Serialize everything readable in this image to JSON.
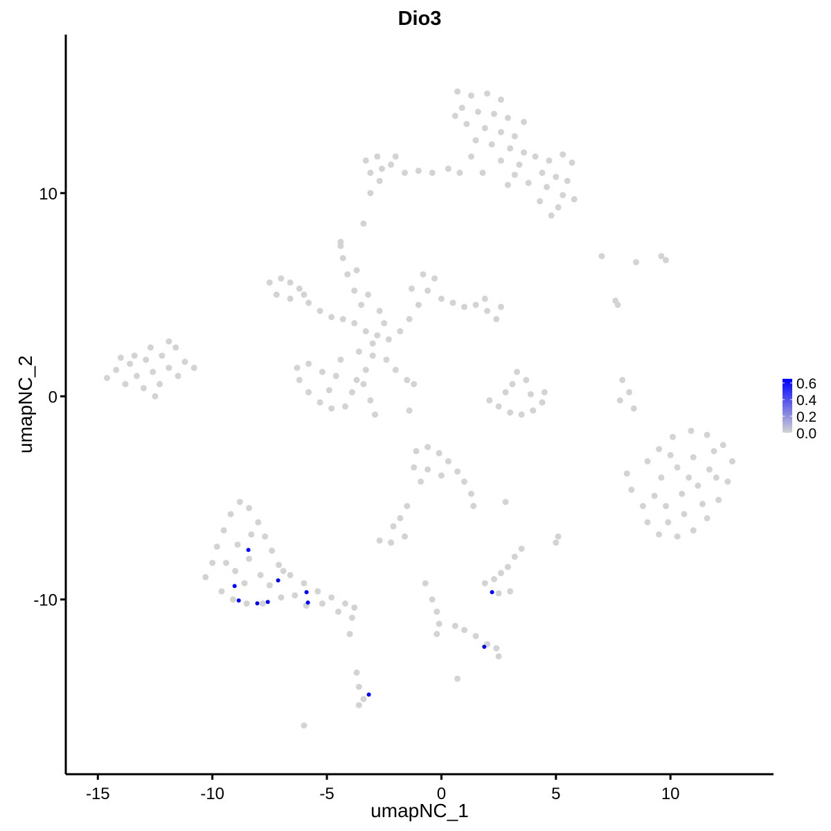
{
  "chart_data": {
    "type": "scatter",
    "title": "Dio3",
    "xlabel": "umapNC_1",
    "ylabel": "umapNC_2",
    "xlim": [
      -16.4,
      14.5
    ],
    "ylim": [
      -18.6,
      17.8
    ],
    "xticks": [
      -15,
      -10,
      -5,
      0,
      5,
      10
    ],
    "yticks": [
      -10,
      0,
      10
    ],
    "grid": false,
    "legend": {
      "placement": "right",
      "type": "colorbar",
      "ticks": [
        "0.0",
        "0.2",
        "0.4",
        "0.6"
      ],
      "range": [
        0,
        0.65
      ],
      "low_color": "#d3d3d3",
      "high_color": "#0000ff"
    },
    "series": [
      {
        "value": 0,
        "color": "#d3d3d3",
        "points": [
          [
            0.7,
            15.0
          ],
          [
            1.3,
            14.8
          ],
          [
            2.0,
            14.9
          ],
          [
            2.6,
            14.6
          ],
          [
            0.9,
            14.2
          ],
          [
            1.6,
            14.0
          ],
          [
            2.3,
            13.9
          ],
          [
            2.9,
            13.7
          ],
          [
            1.1,
            13.4
          ],
          [
            1.9,
            13.2
          ],
          [
            2.6,
            13.0
          ],
          [
            3.2,
            12.8
          ],
          [
            1.5,
            12.6
          ],
          [
            2.2,
            12.4
          ],
          [
            3.0,
            12.2
          ],
          [
            3.6,
            12.0
          ],
          [
            1.3,
            11.8
          ],
          [
            2.6,
            11.6
          ],
          [
            3.4,
            11.4
          ],
          [
            4.1,
            11.8
          ],
          [
            4.7,
            11.6
          ],
          [
            5.3,
            11.9
          ],
          [
            5.7,
            11.5
          ],
          [
            4.4,
            11.0
          ],
          [
            5.0,
            10.8
          ],
          [
            5.5,
            10.6
          ],
          [
            3.8,
            10.5
          ],
          [
            4.6,
            10.3
          ],
          [
            5.3,
            9.9
          ],
          [
            5.8,
            9.7
          ],
          [
            5.1,
            9.3
          ],
          [
            4.8,
            8.9
          ],
          [
            4.3,
            9.6
          ],
          [
            2.9,
            10.4
          ],
          [
            3.2,
            10.9
          ],
          [
            0.8,
            11.0
          ],
          [
            0.3,
            11.2
          ],
          [
            -0.4,
            11.0
          ],
          [
            -1.0,
            11.1
          ],
          [
            -1.6,
            11.0
          ],
          [
            -2.2,
            11.4
          ],
          [
            -2.8,
            11.8
          ],
          [
            -3.3,
            11.6
          ],
          [
            -2.6,
            11.2
          ],
          [
            -3.1,
            11.0
          ],
          [
            -2.7,
            10.6
          ],
          [
            -2.0,
            11.8
          ],
          [
            -3.1,
            10.0
          ],
          [
            -3.4,
            8.5
          ],
          [
            3.6,
            13.5
          ],
          [
            0.6,
            13.8
          ],
          [
            1.8,
            11.0
          ],
          [
            -14.6,
            0.9
          ],
          [
            -14.2,
            1.3
          ],
          [
            -13.8,
            0.6
          ],
          [
            -13.6,
            1.6
          ],
          [
            -13.3,
            1.0
          ],
          [
            -13.0,
            0.4
          ],
          [
            -12.9,
            1.8
          ],
          [
            -12.6,
            1.2
          ],
          [
            -12.3,
            0.6
          ],
          [
            -12.2,
            2.0
          ],
          [
            -11.9,
            1.4
          ],
          [
            -11.6,
            2.4
          ],
          [
            -11.5,
            1.0
          ],
          [
            -11.2,
            1.7
          ],
          [
            -11.9,
            2.7
          ],
          [
            -10.8,
            1.4
          ],
          [
            -13.4,
            2.0
          ],
          [
            -14.0,
            1.9
          ],
          [
            -12.5,
            0.0
          ],
          [
            -12.7,
            2.4
          ],
          [
            -7.5,
            5.6
          ],
          [
            -7.0,
            5.8
          ],
          [
            -6.6,
            5.6
          ],
          [
            -6.2,
            5.3
          ],
          [
            -7.2,
            5.0
          ],
          [
            -6.6,
            4.8
          ],
          [
            -5.8,
            4.6
          ],
          [
            -5.3,
            4.2
          ],
          [
            -4.8,
            3.9
          ],
          [
            -4.3,
            3.8
          ],
          [
            -3.8,
            3.6
          ],
          [
            -3.3,
            3.2
          ],
          [
            -2.8,
            3.0
          ],
          [
            -2.3,
            2.8
          ],
          [
            -1.8,
            3.2
          ],
          [
            -1.4,
            3.8
          ],
          [
            -1.0,
            4.5
          ],
          [
            -0.6,
            5.2
          ],
          [
            -0.3,
            5.8
          ],
          [
            -0.8,
            6.0
          ],
          [
            -1.3,
            5.3
          ],
          [
            0.0,
            4.8
          ],
          [
            0.5,
            4.6
          ],
          [
            1.0,
            4.4
          ],
          [
            1.5,
            4.5
          ],
          [
            2.0,
            4.2
          ],
          [
            2.4,
            3.8
          ],
          [
            2.6,
            4.4
          ],
          [
            1.9,
            4.8
          ],
          [
            -3.5,
            4.5
          ],
          [
            -3.8,
            5.2
          ],
          [
            -4.1,
            6.0
          ],
          [
            -4.3,
            6.8
          ],
          [
            -4.4,
            7.4
          ],
          [
            -3.2,
            5.0
          ],
          [
            -2.7,
            4.2
          ],
          [
            -2.5,
            3.6
          ],
          [
            -3.0,
            2.0
          ],
          [
            -3.3,
            1.3
          ],
          [
            -3.7,
            0.8
          ],
          [
            -3.9,
            0.2
          ],
          [
            -4.2,
            -0.5
          ],
          [
            -4.8,
            -0.6
          ],
          [
            -5.3,
            -0.3
          ],
          [
            -5.8,
            0.2
          ],
          [
            -6.2,
            0.8
          ],
          [
            -6.3,
            1.4
          ],
          [
            -5.8,
            1.6
          ],
          [
            -5.2,
            1.2
          ],
          [
            -4.6,
            1.0
          ],
          [
            -4.4,
            1.8
          ],
          [
            -3.6,
            2.2
          ],
          [
            -4.9,
            0.3
          ],
          [
            -3.1,
            -0.2
          ],
          [
            -3.4,
            0.6
          ],
          [
            -2.4,
            1.8
          ],
          [
            -2.0,
            1.3
          ],
          [
            -1.5,
            0.8
          ],
          [
            -1.2,
            0.6
          ],
          [
            -3.0,
            2.6
          ],
          [
            -6.0,
            5.0
          ],
          [
            2.1,
            -0.2
          ],
          [
            2.5,
            -0.5
          ],
          [
            3.0,
            -0.8
          ],
          [
            3.5,
            -0.9
          ],
          [
            4.0,
            -0.7
          ],
          [
            4.4,
            -0.3
          ],
          [
            4.5,
            0.2
          ],
          [
            3.1,
            0.6
          ],
          [
            3.3,
            1.2
          ],
          [
            3.7,
            0.8
          ],
          [
            2.8,
            0.2
          ],
          [
            3.9,
            0.1
          ],
          [
            8.1,
            -3.8
          ],
          [
            8.3,
            -4.6
          ],
          [
            8.8,
            -5.4
          ],
          [
            9.0,
            -6.2
          ],
          [
            9.5,
            -6.8
          ],
          [
            10.3,
            -6.9
          ],
          [
            11.0,
            -6.6
          ],
          [
            11.6,
            -6.0
          ],
          [
            12.1,
            -5.1
          ],
          [
            12.5,
            -4.2
          ],
          [
            12.7,
            -3.2
          ],
          [
            12.3,
            -2.4
          ],
          [
            11.6,
            -1.9
          ],
          [
            10.9,
            -1.7
          ],
          [
            10.1,
            -2.0
          ],
          [
            9.5,
            -2.6
          ],
          [
            9.0,
            -3.2
          ],
          [
            9.6,
            -4.0
          ],
          [
            10.3,
            -3.5
          ],
          [
            11.0,
            -3.0
          ],
          [
            11.7,
            -3.6
          ],
          [
            11.2,
            -4.4
          ],
          [
            10.5,
            -4.8
          ],
          [
            9.8,
            -5.4
          ],
          [
            10.6,
            -5.8
          ],
          [
            11.4,
            -5.3
          ],
          [
            12.0,
            -4.0
          ],
          [
            9.3,
            -4.9
          ],
          [
            10.0,
            -2.9
          ],
          [
            10.8,
            -4.0
          ],
          [
            11.9,
            -2.7
          ],
          [
            9.9,
            -6.2
          ],
          [
            -10.3,
            -8.9
          ],
          [
            -10.0,
            -8.2
          ],
          [
            -9.8,
            -7.4
          ],
          [
            -9.5,
            -6.6
          ],
          [
            -9.2,
            -5.8
          ],
          [
            -8.8,
            -5.2
          ],
          [
            -8.4,
            -5.5
          ],
          [
            -8.0,
            -6.2
          ],
          [
            -7.7,
            -6.9
          ],
          [
            -7.4,
            -7.6
          ],
          [
            -7.1,
            -8.3
          ],
          [
            -6.6,
            -8.8
          ],
          [
            -6.0,
            -9.2
          ],
          [
            -5.4,
            -9.6
          ],
          [
            -4.8,
            -9.9
          ],
          [
            -4.2,
            -10.2
          ],
          [
            -3.8,
            -10.4
          ],
          [
            -9.6,
            -9.6
          ],
          [
            -9.1,
            -10.0
          ],
          [
            -8.5,
            -10.2
          ],
          [
            -7.8,
            -10.2
          ],
          [
            -7.0,
            -9.9
          ],
          [
            -6.4,
            -9.8
          ],
          [
            -5.9,
            -10.3
          ],
          [
            -9.0,
            -8.6
          ],
          [
            -8.4,
            -8.0
          ],
          [
            -7.9,
            -8.8
          ],
          [
            -8.9,
            -7.3
          ],
          [
            -8.3,
            -6.8
          ],
          [
            -9.4,
            -8.2
          ],
          [
            -8.6,
            -9.2
          ],
          [
            -7.5,
            -9.3
          ],
          [
            -6.9,
            -8.6
          ],
          [
            -5.2,
            -10.2
          ],
          [
            -4.5,
            -10.6
          ],
          [
            -3.9,
            -10.9
          ],
          [
            -1.1,
            -2.7
          ],
          [
            -0.6,
            -2.5
          ],
          [
            -0.1,
            -2.8
          ],
          [
            0.3,
            -3.2
          ],
          [
            0.7,
            -3.7
          ],
          [
            1.0,
            -4.2
          ],
          [
            1.3,
            -4.8
          ],
          [
            1.4,
            -5.4
          ],
          [
            -1.2,
            -3.5
          ],
          [
            -0.6,
            -3.6
          ],
          [
            0.0,
            -3.9
          ],
          [
            -0.9,
            -4.2
          ],
          [
            -1.5,
            -5.4
          ],
          [
            -1.8,
            -6.0
          ],
          [
            -2.1,
            -6.4
          ],
          [
            -2.7,
            -7.1
          ],
          [
            -2.2,
            -7.2
          ],
          [
            -1.6,
            -6.9
          ],
          [
            1.9,
            -9.2
          ],
          [
            2.3,
            -9.0
          ],
          [
            2.6,
            -8.7
          ],
          [
            2.9,
            -8.4
          ],
          [
            3.0,
            -9.6
          ],
          [
            2.5,
            -9.7
          ],
          [
            3.2,
            -7.9
          ],
          [
            3.5,
            -7.5
          ],
          [
            5.0,
            -7.2
          ],
          [
            5.1,
            -6.9
          ],
          [
            2.8,
            -5.2
          ],
          [
            -0.7,
            -9.2
          ],
          [
            -0.4,
            -10.0
          ],
          [
            -0.2,
            -10.6
          ],
          [
            -0.1,
            -11.2
          ],
          [
            -0.2,
            -11.7
          ],
          [
            0.6,
            -11.3
          ],
          [
            1.0,
            -11.5
          ],
          [
            1.5,
            -11.8
          ],
          [
            2.0,
            -12.2
          ],
          [
            2.4,
            -12.4
          ],
          [
            2.5,
            -12.8
          ],
          [
            -3.7,
            -13.6
          ],
          [
            -3.6,
            -14.3
          ],
          [
            -3.4,
            -14.9
          ],
          [
            -3.6,
            -15.2
          ],
          [
            -4.0,
            -11.7
          ],
          [
            -6.0,
            -16.2
          ],
          [
            0.7,
            -13.9
          ],
          [
            7.0,
            6.9
          ],
          [
            8.5,
            6.6
          ],
          [
            9.6,
            6.9
          ],
          [
            9.8,
            6.7
          ],
          [
            7.6,
            4.7
          ],
          [
            7.7,
            4.5
          ],
          [
            7.9,
            0.8
          ],
          [
            8.2,
            0.2
          ],
          [
            8.4,
            -0.6
          ],
          [
            7.8,
            -0.2
          ],
          [
            -4.4,
            7.6
          ],
          [
            -3.7,
            6.2
          ],
          [
            -2.9,
            -0.9
          ],
          [
            -1.4,
            -0.7
          ]
        ]
      },
      {
        "value": 0.65,
        "color": "#0000ff",
        "points": [
          [
            -8.43,
            -7.56
          ],
          [
            -9.03,
            -9.34
          ],
          [
            -8.85,
            -10.05
          ],
          [
            -8.04,
            -10.19
          ],
          [
            -7.58,
            -10.12
          ],
          [
            -7.13,
            -9.06
          ],
          [
            -5.89,
            -9.64
          ],
          [
            -5.83,
            -10.15
          ],
          [
            2.21,
            -9.64
          ],
          [
            1.87,
            -12.33
          ],
          [
            -3.17,
            -14.68
          ]
        ]
      }
    ]
  }
}
